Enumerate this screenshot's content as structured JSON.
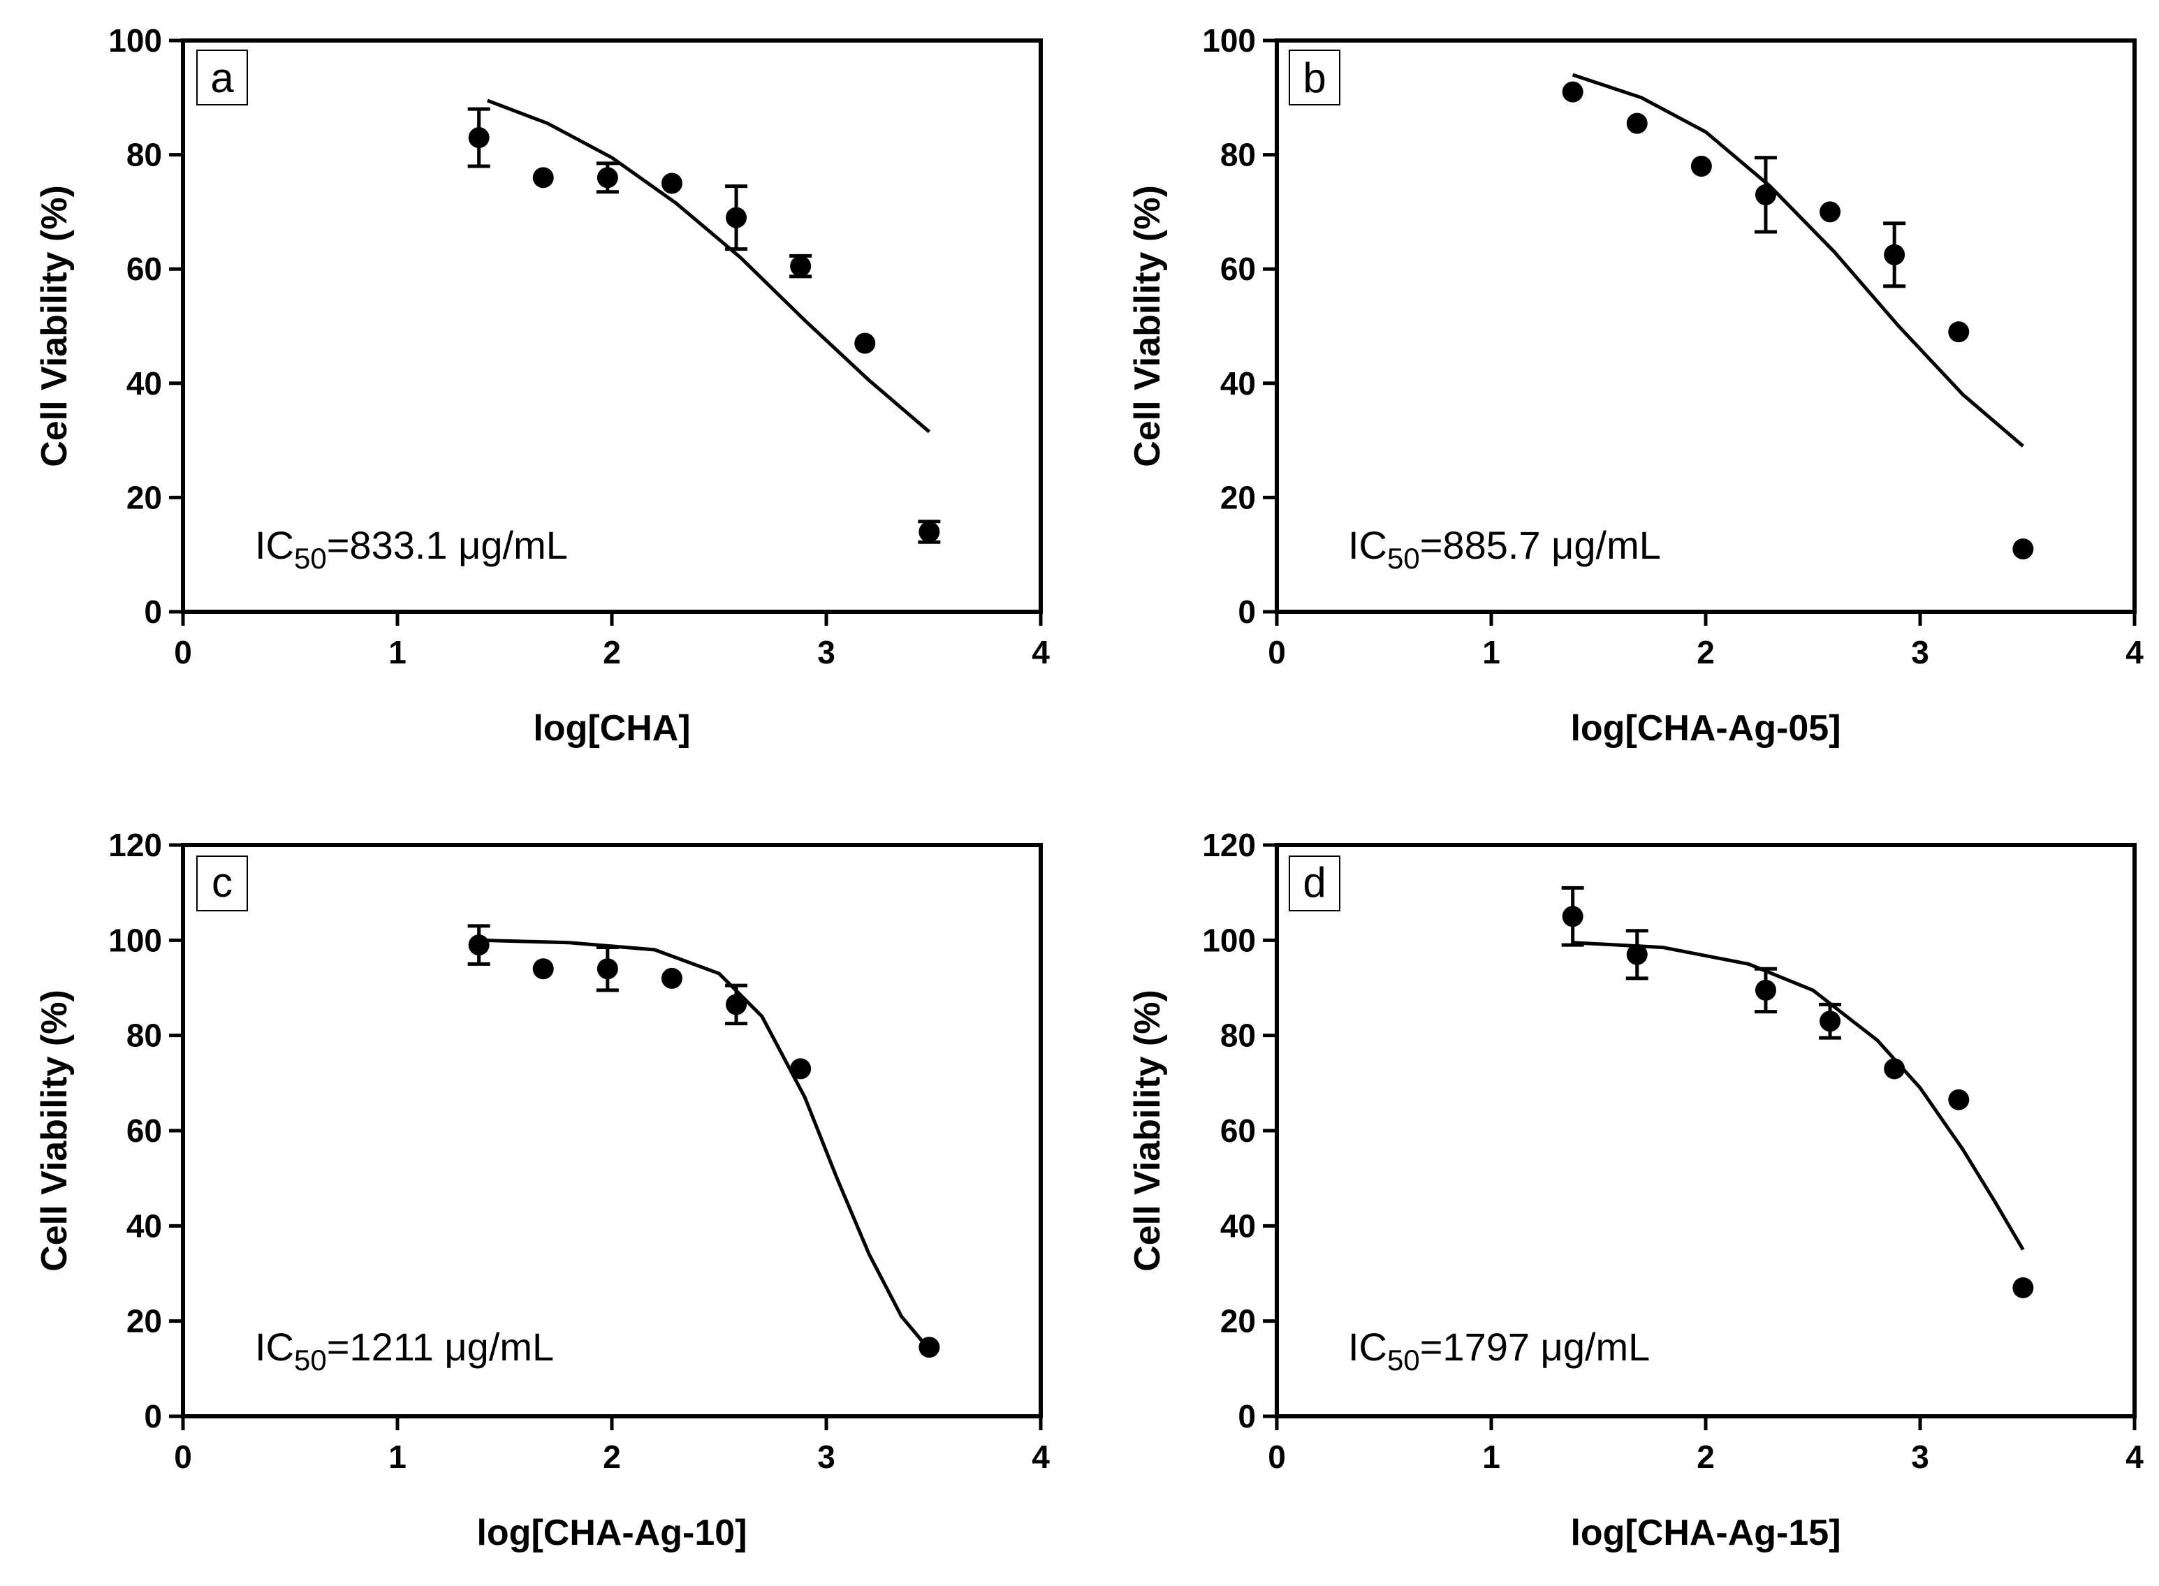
{
  "chart_data": [
    {
      "type": "scatter",
      "panel": "a",
      "xlabel": "log[CHA]",
      "ylabel": "Cell Viability (%)",
      "xlim": [
        0,
        4
      ],
      "ylim": [
        0,
        100
      ],
      "xticks": [
        "0",
        "1",
        "2",
        "3",
        "4"
      ],
      "yticks": [
        "0",
        "20",
        "40",
        "60",
        "80",
        "100"
      ],
      "annotation": {
        "prefix": "IC",
        "subscript": "50",
        "value": "=833.1 μg/mL"
      },
      "points": [
        {
          "x": 1.38,
          "y": 83,
          "err": 5
        },
        {
          "x": 1.68,
          "y": 76,
          "err": 0
        },
        {
          "x": 1.98,
          "y": 76,
          "err": 2.5
        },
        {
          "x": 2.28,
          "y": 75,
          "err": 0
        },
        {
          "x": 2.58,
          "y": 69,
          "err": 5.5
        },
        {
          "x": 2.88,
          "y": 60.5,
          "err": 1.8
        },
        {
          "x": 3.18,
          "y": 47,
          "err": 0
        },
        {
          "x": 3.48,
          "y": 14,
          "err": 1.8
        }
      ],
      "fit": {
        "x": [
          1.42,
          1.7,
          2.0,
          2.3,
          2.6,
          2.9,
          3.2,
          3.48
        ],
        "y": [
          89.5,
          85.5,
          79.5,
          71.5,
          62,
          51,
          40.5,
          31.5
        ]
      }
    },
    {
      "type": "scatter",
      "panel": "b",
      "xlabel": "log[CHA-Ag-05]",
      "ylabel": "Cell Viability (%)",
      "xlim": [
        0,
        4
      ],
      "ylim": [
        0,
        100
      ],
      "xticks": [
        "0",
        "1",
        "2",
        "3",
        "4"
      ],
      "yticks": [
        "0",
        "20",
        "40",
        "60",
        "80",
        "100"
      ],
      "annotation": {
        "prefix": "IC",
        "subscript": "50",
        "value": "=885.7 μg/mL"
      },
      "points": [
        {
          "x": 1.38,
          "y": 91,
          "err": 0
        },
        {
          "x": 1.68,
          "y": 85.5,
          "err": 0
        },
        {
          "x": 1.98,
          "y": 78,
          "err": 0
        },
        {
          "x": 2.28,
          "y": 73,
          "err": 6.5
        },
        {
          "x": 2.58,
          "y": 70,
          "err": 0
        },
        {
          "x": 2.88,
          "y": 62.5,
          "err": 5.5
        },
        {
          "x": 3.18,
          "y": 49,
          "err": 0
        },
        {
          "x": 3.48,
          "y": 11,
          "err": 0
        }
      ],
      "fit": {
        "x": [
          1.38,
          1.7,
          2.0,
          2.3,
          2.6,
          2.9,
          3.2,
          3.48
        ],
        "y": [
          94,
          90,
          84,
          74.5,
          63,
          50,
          38,
          29
        ]
      }
    },
    {
      "type": "scatter",
      "panel": "c",
      "xlabel": "log[CHA-Ag-10]",
      "ylabel": "Cell Viability (%)",
      "xlim": [
        0,
        4
      ],
      "ylim": [
        0,
        120
      ],
      "xticks": [
        "0",
        "1",
        "2",
        "3",
        "4"
      ],
      "yticks": [
        "0",
        "20",
        "40",
        "60",
        "80",
        "100",
        "120"
      ],
      "annotation": {
        "prefix": "IC",
        "subscript": "50",
        "value": "=1211 μg/mL"
      },
      "points": [
        {
          "x": 1.38,
          "y": 99,
          "err": 4
        },
        {
          "x": 1.68,
          "y": 94,
          "err": 0
        },
        {
          "x": 1.98,
          "y": 94,
          "err": 4.5
        },
        {
          "x": 2.28,
          "y": 92,
          "err": 0
        },
        {
          "x": 2.58,
          "y": 86.5,
          "err": 4
        },
        {
          "x": 2.88,
          "y": 73,
          "err": 0
        },
        {
          "x": 3.48,
          "y": 14.5,
          "err": 0
        }
      ],
      "fit": {
        "x": [
          1.38,
          1.8,
          2.2,
          2.5,
          2.7,
          2.9,
          3.05,
          3.2,
          3.35,
          3.48
        ],
        "y": [
          100,
          99.5,
          98,
          93,
          84,
          67,
          50,
          34,
          21,
          14
        ]
      }
    },
    {
      "type": "scatter",
      "panel": "d",
      "xlabel": "log[CHA-Ag-15]",
      "ylabel": "Cell Viability (%)",
      "xlim": [
        0,
        4
      ],
      "ylim": [
        0,
        120
      ],
      "xticks": [
        "0",
        "1",
        "2",
        "3",
        "4"
      ],
      "yticks": [
        "0",
        "20",
        "40",
        "60",
        "80",
        "100",
        "120"
      ],
      "annotation": {
        "prefix": "IC",
        "subscript": "50",
        "value": "=1797  μg/mL"
      },
      "points": [
        {
          "x": 1.38,
          "y": 105,
          "err": 6
        },
        {
          "x": 1.68,
          "y": 97,
          "err": 5
        },
        {
          "x": 2.28,
          "y": 89.5,
          "err": 4.5
        },
        {
          "x": 2.58,
          "y": 83,
          "err": 3.5
        },
        {
          "x": 2.88,
          "y": 73,
          "err": 0
        },
        {
          "x": 3.18,
          "y": 66.5,
          "err": 0
        },
        {
          "x": 3.48,
          "y": 27,
          "err": 0
        }
      ],
      "fit": {
        "x": [
          1.38,
          1.8,
          2.2,
          2.5,
          2.8,
          3.0,
          3.2,
          3.35,
          3.48
        ],
        "y": [
          99.5,
          98.5,
          95,
          89.5,
          79,
          69,
          56,
          45,
          35
        ]
      }
    }
  ]
}
